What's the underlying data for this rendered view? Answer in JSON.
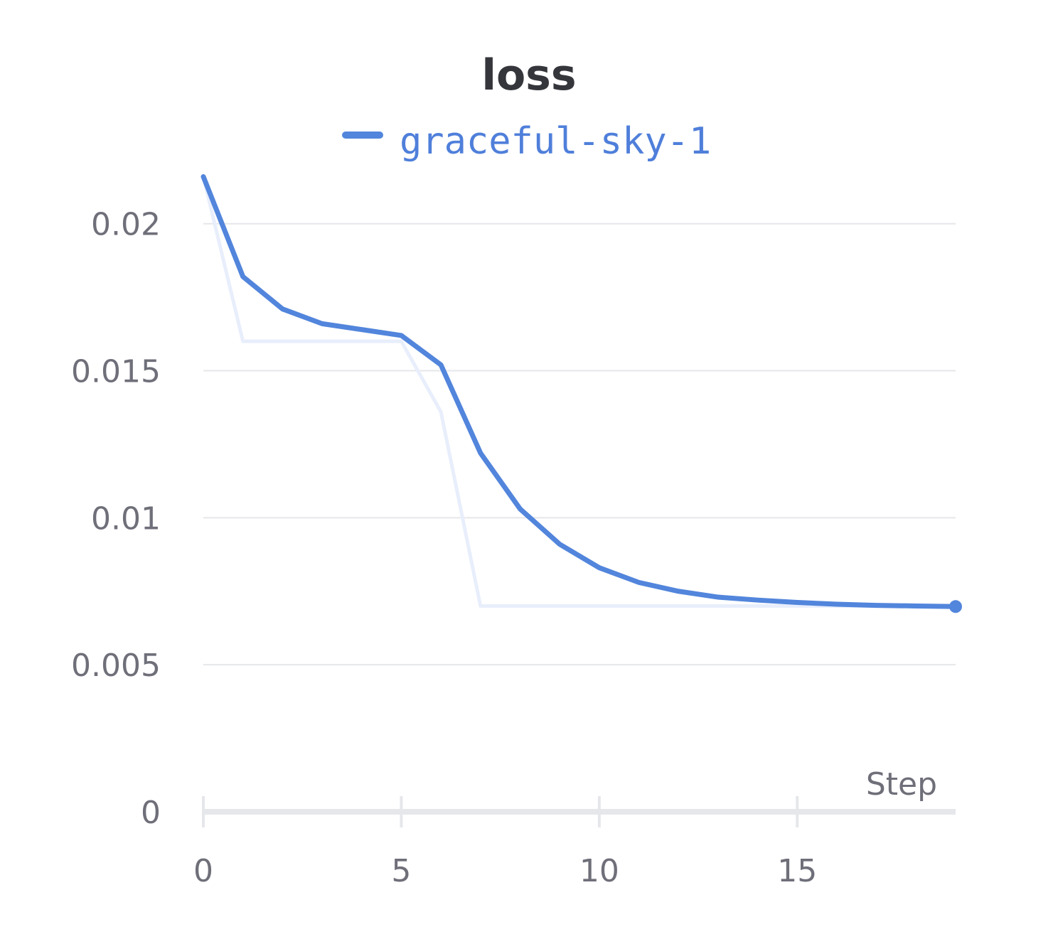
{
  "chart_data": {
    "type": "line",
    "title": "loss",
    "xlabel": "Step",
    "ylabel": "",
    "xlim": [
      0,
      19
    ],
    "ylim": [
      0,
      0.022
    ],
    "x_ticks": [
      0,
      5,
      10,
      15
    ],
    "y_ticks": [
      0,
      0.005,
      0.01,
      0.015,
      0.02
    ],
    "x_tick_labels": [
      "0",
      "5",
      "10",
      "15"
    ],
    "y_tick_labels": [
      "0",
      "0.005",
      "0.01",
      "0.015",
      "0.02"
    ],
    "grid": true,
    "legend": "top-center",
    "x": [
      0,
      1,
      2,
      3,
      4,
      5,
      6,
      7,
      8,
      9,
      10,
      11,
      12,
      13,
      14,
      15,
      16,
      17,
      18,
      19
    ],
    "series": [
      {
        "name": "graceful-sky-1",
        "color": "#5285dc",
        "values": [
          0.0216,
          0.0182,
          0.0171,
          0.0166,
          0.0164,
          0.0162,
          0.0152,
          0.0122,
          0.0103,
          0.0091,
          0.0083,
          0.0078,
          0.0075,
          0.0073,
          0.0072,
          0.00712,
          0.00706,
          0.00702,
          0.007,
          0.00698
        ]
      },
      {
        "color": "#e8eefb",
        "values": [
          0.0216,
          0.016,
          0.016,
          0.016,
          0.016,
          0.016,
          0.0136,
          0.007,
          0.007,
          0.007,
          0.007,
          0.007,
          0.007,
          0.007,
          0.007,
          0.007,
          0.007,
          0.007,
          0.007,
          0.007
        ]
      }
    ]
  }
}
